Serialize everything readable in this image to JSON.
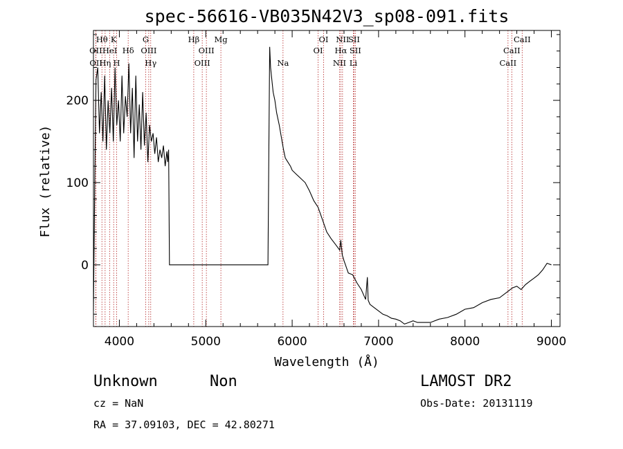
{
  "chart_data": {
    "type": "line",
    "title": "spec-56616-VB035N42V3_sp08-091.fits",
    "xlabel": "Wavelength (Å)",
    "ylabel": "Flux (relative)",
    "xlim": [
      3700,
      9100
    ],
    "ylim": [
      -75,
      285
    ],
    "x_ticks": [
      4000,
      5000,
      6000,
      7000,
      8000,
      9000
    ],
    "y_ticks": [
      0,
      100,
      200
    ],
    "grid": false,
    "line_color": "#000000",
    "marker_line_color": "#b22222",
    "spectral_lines": [
      {
        "label": "Hθ",
        "wave": 3798,
        "row": 1
      },
      {
        "label": "OII",
        "wave": 3727,
        "row": 2
      },
      {
        "label": "OII",
        "wave": 3729,
        "row": 3
      },
      {
        "label": "Hη",
        "wave": 3835,
        "row": 3
      },
      {
        "label": "HeI",
        "wave": 3889,
        "row": 2
      },
      {
        "label": "K",
        "wave": 3934,
        "row": 1
      },
      {
        "label": "H",
        "wave": 3969,
        "row": 3
      },
      {
        "label": "Hδ",
        "wave": 4102,
        "row": 2
      },
      {
        "label": "G",
        "wave": 4305,
        "row": 1
      },
      {
        "label": "OIII",
        "wave": 4340,
        "row": 2
      },
      {
        "label": "Hγ",
        "wave": 4363,
        "row": 3
      },
      {
        "label": "Hβ",
        "wave": 4861,
        "row": 1
      },
      {
        "label": "OIII",
        "wave": 4959,
        "row": 3
      },
      {
        "label": "OIII",
        "wave": 5007,
        "row": 2
      },
      {
        "label": "Mg",
        "wave": 5175,
        "row": 1
      },
      {
        "label": "Na",
        "wave": 5894,
        "row": 3
      },
      {
        "label": "OI",
        "wave": 6300,
        "row": 2
      },
      {
        "label": "OI",
        "wave": 6364,
        "row": 1
      },
      {
        "label": "NII",
        "wave": 6548,
        "row": 3
      },
      {
        "label": "Hα",
        "wave": 6563,
        "row": 2
      },
      {
        "label": "NII",
        "wave": 6583,
        "row": 1
      },
      {
        "label": "SII",
        "wave": 6716,
        "row": 1
      },
      {
        "label": "SII",
        "wave": 6731,
        "row": 2
      },
      {
        "label": "Li",
        "wave": 6708,
        "row": 3
      },
      {
        "label": "CaII",
        "wave": 8498,
        "row": 3
      },
      {
        "label": "CaII",
        "wave": 8542,
        "row": 2
      },
      {
        "label": "CaII",
        "wave": 8662,
        "row": 1
      }
    ],
    "series": [
      {
        "x": [
          3700,
          3715,
          3730,
          3750,
          3770,
          3790,
          3810,
          3830,
          3850,
          3870,
          3890,
          3910,
          3930,
          3950,
          3970,
          3990,
          4010,
          4030,
          4050,
          4070,
          4090,
          4110,
          4130,
          4150,
          4170,
          4190,
          4210,
          4230,
          4250,
          4270,
          4290,
          4310,
          4330,
          4350,
          4370,
          4390,
          4410,
          4430,
          4450,
          4470,
          4490,
          4510,
          4530,
          4550,
          4560,
          4570,
          4580,
          4600,
          5000,
          5500,
          5720,
          5730,
          5740,
          5750,
          5760,
          5780,
          5800,
          5820,
          5850,
          5880,
          5900,
          5920,
          5950,
          5980,
          6000,
          6050,
          6100,
          6150,
          6200,
          6250,
          6300,
          6350,
          6400,
          6450,
          6500,
          6550,
          6563,
          6580,
          6600,
          6650,
          6700,
          6750,
          6800,
          6850,
          6870,
          6880,
          6900,
          6950,
          7000,
          7050,
          7100,
          7150,
          7200,
          7250,
          7300,
          7350,
          7400,
          7450,
          7500,
          7600,
          7700,
          7800,
          7900,
          8000,
          8100,
          8200,
          8300,
          8400,
          8500,
          8550,
          8600,
          8650,
          8700,
          8750,
          8800,
          8850,
          8900,
          8950,
          9000
        ],
        "y": [
          -55,
          100,
          225,
          240,
          160,
          210,
          150,
          230,
          140,
          200,
          160,
          215,
          150,
          240,
          170,
          200,
          150,
          230,
          160,
          205,
          180,
          245,
          160,
          215,
          130,
          230,
          150,
          195,
          140,
          210,
          145,
          185,
          125,
          170,
          150,
          160,
          135,
          155,
          125,
          140,
          130,
          145,
          120,
          138,
          125,
          140,
          0,
          0,
          0,
          0,
          0,
          140,
          265,
          240,
          230,
          210,
          200,
          185,
          170,
          152,
          140,
          130,
          125,
          120,
          115,
          110,
          105,
          100,
          90,
          78,
          70,
          55,
          40,
          32,
          25,
          18,
          30,
          12,
          5,
          -10,
          -12,
          -22,
          -30,
          -42,
          -15,
          -43,
          -48,
          -52,
          -56,
          -60,
          -62,
          -65,
          -66,
          -68,
          -72,
          -70,
          -68,
          -70,
          -70,
          -70,
          -66,
          -64,
          -60,
          -54,
          -52,
          -46,
          -42,
          -40,
          -32,
          -28,
          -26,
          -30,
          -24,
          -20,
          -16,
          -12,
          -6,
          2,
          0
        ]
      }
    ]
  },
  "footer": {
    "class_label": "Unknown",
    "subclass_label": "Non",
    "survey": "LAMOST DR2",
    "cz": "cz = NaN",
    "obs_date": "Obs-Date: 20131119",
    "coords": "RA =  37.09103, DEC =  42.80271"
  }
}
